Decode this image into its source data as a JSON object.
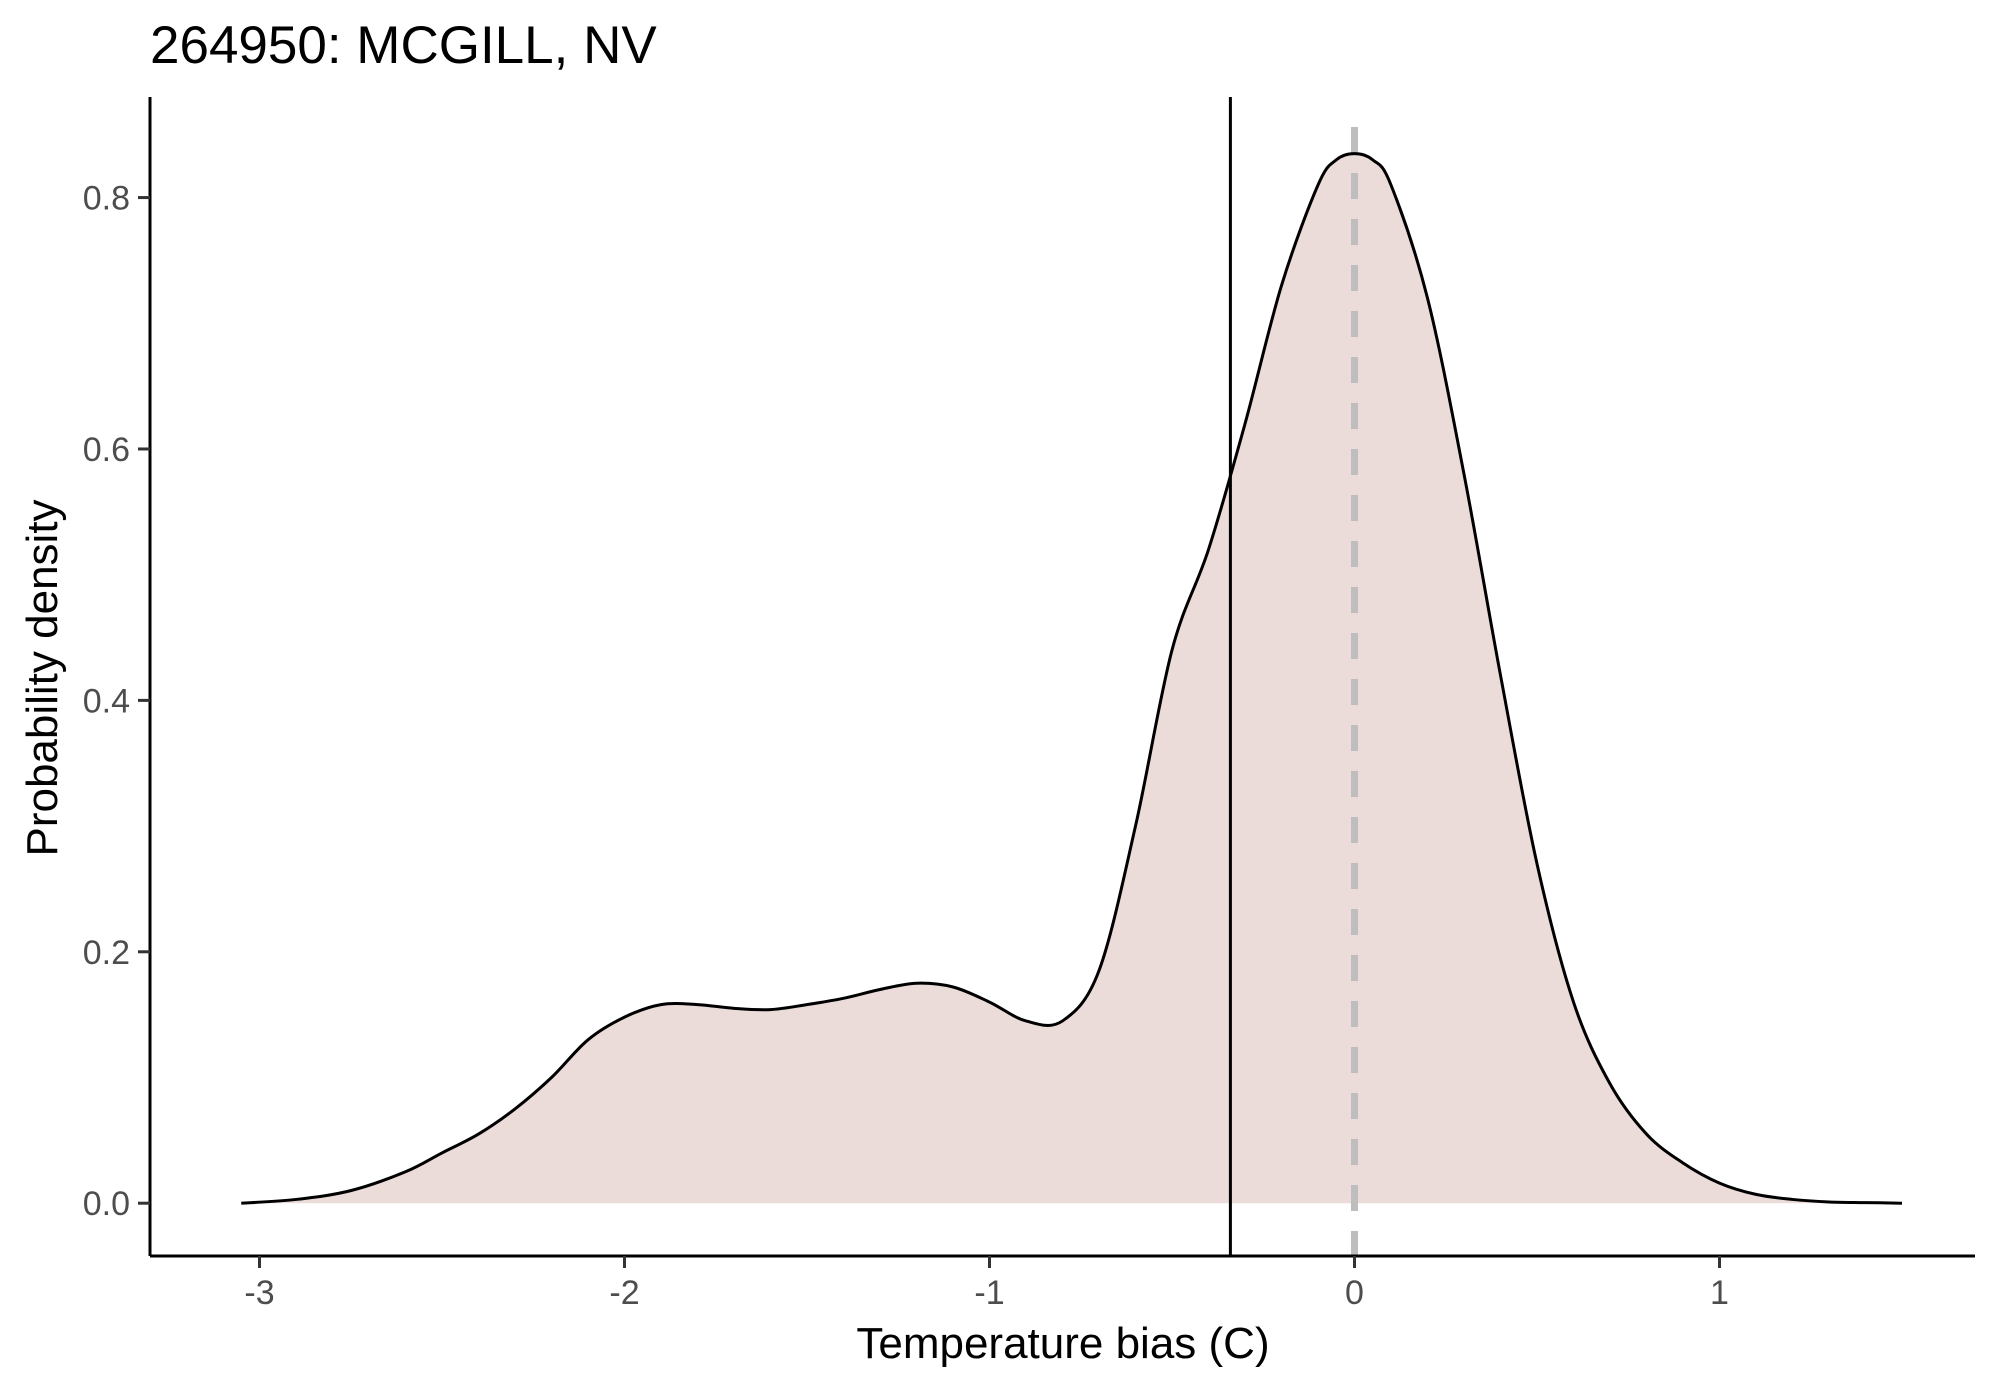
{
  "chart_data": {
    "type": "area",
    "title": "264950: MCGILL, NV",
    "xlabel": "Temperature bias (C)",
    "ylabel": "Probability density",
    "xlim": [
      -3.3,
      1.7
    ],
    "ylim": [
      -0.042,
      0.88
    ],
    "x_ticks": [
      -3,
      -2,
      -1,
      0,
      1
    ],
    "x_tick_labels": [
      "-3",
      "-2",
      "-1",
      "0",
      "1"
    ],
    "y_ticks": [
      0.0,
      0.2,
      0.4,
      0.6,
      0.8
    ],
    "y_tick_labels": [
      "0.0",
      "0.2",
      "0.4",
      "0.6",
      "0.8"
    ],
    "grid": false,
    "legend": "none",
    "series": [
      {
        "x": [
          -3.05,
          -2.9,
          -2.75,
          -2.6,
          -2.5,
          -2.4,
          -2.3,
          -2.2,
          -2.1,
          -2.0,
          -1.9,
          -1.8,
          -1.7,
          -1.6,
          -1.5,
          -1.4,
          -1.3,
          -1.2,
          -1.1,
          -1.0,
          -0.9,
          -0.8,
          -0.7,
          -0.6,
          -0.5,
          -0.4,
          -0.3,
          -0.2,
          -0.1,
          -0.05,
          0.0,
          0.05,
          0.1,
          0.2,
          0.3,
          0.4,
          0.5,
          0.6,
          0.7,
          0.8,
          0.9,
          1.0,
          1.1,
          1.2,
          1.3,
          1.4,
          1.5
        ],
        "y": [
          0.0,
          0.003,
          0.01,
          0.025,
          0.04,
          0.055,
          0.075,
          0.1,
          0.13,
          0.148,
          0.158,
          0.158,
          0.155,
          0.154,
          0.158,
          0.163,
          0.17,
          0.175,
          0.172,
          0.16,
          0.145,
          0.145,
          0.185,
          0.3,
          0.44,
          0.52,
          0.62,
          0.73,
          0.81,
          0.83,
          0.835,
          0.83,
          0.81,
          0.72,
          0.58,
          0.42,
          0.27,
          0.16,
          0.095,
          0.055,
          0.032,
          0.016,
          0.007,
          0.003,
          0.001,
          0.0005,
          0.0
        ]
      }
    ],
    "vertical_line_x": -0.34,
    "reference_line_x": 0.0,
    "colors": {
      "fill": "#ebdcda",
      "curve": "#000000",
      "vertical_line": "#000000",
      "reference_line": "#bebebe",
      "axis": "#000000",
      "tick_label": "#4d4d4d"
    }
  }
}
